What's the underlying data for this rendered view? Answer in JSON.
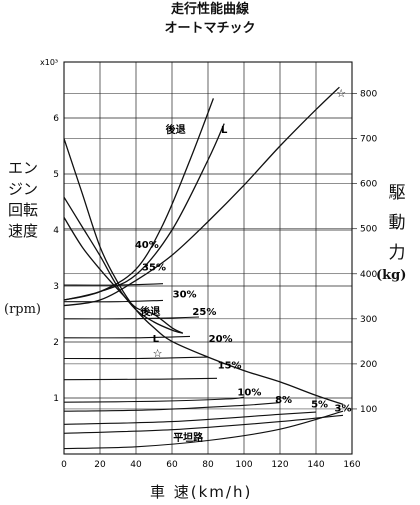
{
  "titles": {
    "line1": "走行性能曲線",
    "line2": "オートマチック"
  },
  "chart_data": {
    "type": "line",
    "x_axis": {
      "label": "車 速(km/h)",
      "range": [
        0,
        160
      ],
      "ticks": [
        0,
        20,
        40,
        60,
        80,
        100,
        120,
        140,
        160
      ]
    },
    "y_left_axis": {
      "label": "エンジン回転速度",
      "unit": "(rpm)",
      "multiplier": "x10³",
      "range": [
        0,
        7
      ],
      "ticks": [
        1,
        2,
        3,
        4,
        5,
        6
      ]
    },
    "y_right_axis": {
      "label": "駆動力",
      "unit": "(kg)",
      "range": [
        0,
        870
      ],
      "ticks": [
        100,
        200,
        300,
        400,
        500,
        600,
        700,
        800
      ]
    },
    "grid": true,
    "engine_curves": [
      {
        "name": "後退",
        "points": [
          [
            0,
            2.75
          ],
          [
            20,
            2.9
          ],
          [
            40,
            3.3
          ],
          [
            55,
            4.1
          ],
          [
            70,
            5.25
          ],
          [
            83,
            6.35
          ]
        ]
      },
      {
        "name": "L",
        "points": [
          [
            0,
            2.75
          ],
          [
            20,
            2.9
          ],
          [
            40,
            3.2
          ],
          [
            60,
            4.0
          ],
          [
            80,
            5.25
          ],
          [
            89,
            5.9
          ]
        ]
      },
      {
        "name": "",
        "points": [
          [
            0,
            2.65
          ],
          [
            20,
            2.75
          ],
          [
            40,
            3.1
          ],
          [
            60,
            3.55
          ],
          [
            80,
            4.15
          ],
          [
            100,
            4.8
          ],
          [
            120,
            5.5
          ],
          [
            140,
            6.15
          ],
          [
            153,
            6.55
          ]
        ]
      }
    ],
    "tractive_curves": [
      {
        "name": "後退",
        "points": [
          [
            0,
            525
          ],
          [
            10,
            460
          ],
          [
            20,
            410
          ],
          [
            30,
            365
          ],
          [
            40,
            325
          ],
          [
            50,
            310
          ],
          [
            60,
            280
          ],
          [
            66,
            268
          ]
        ]
      },
      {
        "name": "L",
        "points": [
          [
            0,
            570
          ],
          [
            10,
            505
          ],
          [
            20,
            440
          ],
          [
            30,
            370
          ],
          [
            40,
            320
          ],
          [
            50,
            293
          ],
          [
            60,
            275
          ],
          [
            66,
            268
          ]
        ]
      },
      {
        "name": "",
        "points": [
          [
            0,
            700
          ],
          [
            10,
            580
          ],
          [
            20,
            460
          ],
          [
            30,
            380
          ],
          [
            40,
            320
          ],
          [
            50,
            280
          ],
          [
            60,
            250
          ],
          [
            80,
            215
          ],
          [
            100,
            185
          ],
          [
            120,
            160
          ],
          [
            140,
            130
          ],
          [
            155,
            110
          ]
        ]
      }
    ],
    "resistance_curves": [
      {
        "name": "40%",
        "points": [
          [
            0,
            375
          ],
          [
            30,
            375
          ],
          [
            55,
            378
          ]
        ]
      },
      {
        "name": "35%",
        "points": [
          [
            0,
            338
          ],
          [
            30,
            338
          ],
          [
            55,
            341
          ]
        ]
      },
      {
        "name": "30%",
        "points": [
          [
            0,
            300
          ],
          [
            30,
            300
          ],
          [
            60,
            302
          ],
          [
            75,
            304
          ]
        ]
      },
      {
        "name": "25%",
        "points": [
          [
            0,
            258
          ],
          [
            40,
            258
          ],
          [
            70,
            261
          ]
        ]
      },
      {
        "name": "20%",
        "points": [
          [
            0,
            212
          ],
          [
            40,
            212
          ],
          [
            80,
            215
          ]
        ]
      },
      {
        "name": "15%",
        "points": [
          [
            0,
            165
          ],
          [
            50,
            166
          ],
          [
            85,
            168
          ]
        ]
      },
      {
        "name": "10%",
        "points": [
          [
            0,
            115
          ],
          [
            50,
            117
          ],
          [
            90,
            122
          ],
          [
            100,
            126
          ]
        ]
      },
      {
        "name": "8%",
        "points": [
          [
            0,
            95
          ],
          [
            50,
            98
          ],
          [
            100,
            108
          ],
          [
            120,
            114
          ]
        ]
      },
      {
        "name": "5%",
        "points": [
          [
            0,
            66
          ],
          [
            60,
            72
          ],
          [
            120,
            88
          ],
          [
            140,
            93
          ]
        ]
      },
      {
        "name": "3%",
        "points": [
          [
            0,
            46
          ],
          [
            60,
            54
          ],
          [
            120,
            72
          ],
          [
            155,
            86
          ]
        ]
      },
      {
        "name": "平坦路",
        "points": [
          [
            0,
            12
          ],
          [
            40,
            16
          ],
          [
            80,
            30
          ],
          [
            120,
            55
          ],
          [
            155,
            95
          ]
        ]
      }
    ],
    "markers": [
      {
        "label": "☆",
        "x": 52,
        "y_rpm": 1.8
      },
      {
        "label": "☆",
        "x": 154,
        "y_rpm": 6.45
      }
    ],
    "curve_labels": [
      {
        "text": "後退",
        "x": 62,
        "y_rpm": 5.8
      },
      {
        "text": "L",
        "x": 89,
        "y_rpm": 5.8
      },
      {
        "text": "40%",
        "x": 46,
        "y_rpm": 3.75
      },
      {
        "text": "35%",
        "x": 50,
        "y_rpm": 3.35
      },
      {
        "text": "30%",
        "x": 67,
        "y_rpm": 2.87
      },
      {
        "text": "後退",
        "x": 48,
        "y_rpm": 2.55
      },
      {
        "text": "25%",
        "x": 78,
        "y_rpm": 2.55
      },
      {
        "text": "L",
        "x": 51,
        "y_rpm": 2.07
      },
      {
        "text": "20%",
        "x": 87,
        "y_rpm": 2.07
      },
      {
        "text": "15%",
        "x": 92,
        "y_rpm": 1.6
      },
      {
        "text": "10%",
        "x": 103,
        "y_rpm": 1.12
      },
      {
        "text": "8%",
        "x": 122,
        "y_rpm": 0.98
      },
      {
        "text": "5%",
        "x": 142,
        "y_rpm": 0.9
      },
      {
        "text": "3%",
        "x": 155,
        "y_rpm": 0.83
      },
      {
        "text": "平坦路",
        "x": 69,
        "y_rpm": 0.3
      }
    ]
  }
}
